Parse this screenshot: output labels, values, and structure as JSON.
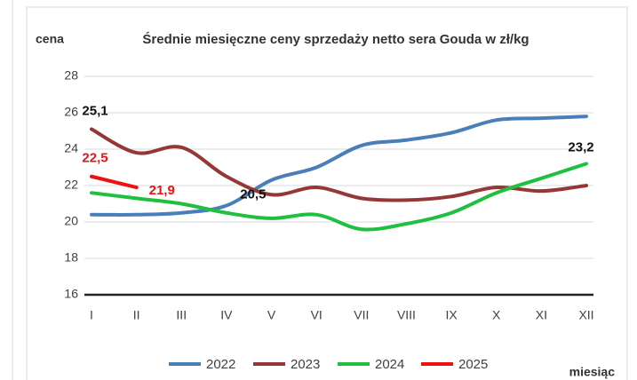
{
  "chart_data": {
    "type": "line",
    "title": "Średnie miesięczne ceny sprzedaży netto sera Gouda w zł/kg",
    "y_label": "cena",
    "x_label": "miesiąc",
    "categories": [
      "I",
      "II",
      "III",
      "IV",
      "V",
      "VI",
      "VII",
      "VIII",
      "IX",
      "X",
      "XI",
      "XII"
    ],
    "ylim": [
      16,
      28
    ],
    "yticks": [
      16,
      18,
      20,
      22,
      24,
      26,
      28
    ],
    "grid": true,
    "legend": "bottom",
    "series": [
      {
        "name": "2022",
        "color": "#4a7ebb",
        "values": [
          20.4,
          20.4,
          20.5,
          20.9,
          22.3,
          23.0,
          24.2,
          24.5,
          24.9,
          25.6,
          25.7,
          25.8
        ]
      },
      {
        "name": "2023",
        "color": "#953735",
        "values": [
          25.1,
          23.8,
          24.1,
          22.5,
          21.5,
          21.9,
          21.3,
          21.2,
          21.4,
          21.9,
          21.7,
          22.0
        ],
        "value_labels": [
          "25,1",
          null,
          null,
          null,
          null,
          null,
          null,
          null,
          null,
          null,
          null,
          null
        ]
      },
      {
        "name": "2024",
        "color": "#1fbf3f",
        "values": [
          21.6,
          21.3,
          21.0,
          20.5,
          20.2,
          20.4,
          19.6,
          19.9,
          20.5,
          21.6,
          22.4,
          23.2
        ],
        "value_labels": [
          null,
          null,
          null,
          "20,5",
          null,
          null,
          null,
          null,
          null,
          null,
          null,
          "23,2"
        ]
      },
      {
        "name": "2025",
        "color": "#ee1111",
        "values": [
          22.5,
          21.9,
          null,
          null,
          null,
          null,
          null,
          null,
          null,
          null,
          null,
          null
        ],
        "value_labels": [
          "22,5",
          "21,9",
          null,
          null,
          null,
          null,
          null,
          null,
          null,
          null,
          null,
          null
        ]
      }
    ]
  }
}
